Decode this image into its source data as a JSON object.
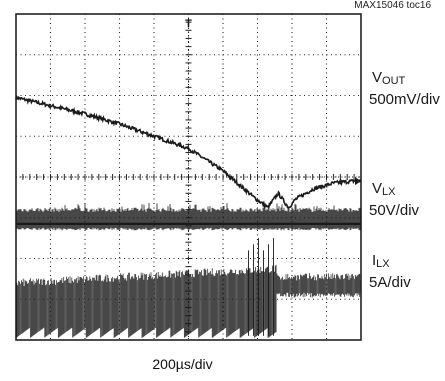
{
  "figure_id": "MAX15046 toc16",
  "channels": [
    {
      "symbol": "V",
      "subscript": "OUT",
      "scale": "500mV/div"
    },
    {
      "symbol": "V",
      "subscript": "LX",
      "scale": "50V/div"
    },
    {
      "symbol": "I",
      "subscript": "LX",
      "scale": "5A/div"
    }
  ],
  "timebase": "200µs/div",
  "colors": {
    "trace": "#1a1a1a",
    "grid": "#222222",
    "background": "#ffffff"
  },
  "chart_data": {
    "type": "line",
    "title": "",
    "x_divisions": 10,
    "y_divisions": 8,
    "grid": true,
    "trigger_marker": "T",
    "series": [
      {
        "name": "VOUT",
        "units": "div",
        "x_div": [
          0,
          0.5,
          1,
          2,
          3,
          4,
          5,
          6,
          6.9,
          7.3,
          7.6,
          7.9,
          8.1,
          8.6,
          9.2,
          10
        ],
        "y_div": [
          5.95,
          5.85,
          5.75,
          5.55,
          5.3,
          5.0,
          4.7,
          4.15,
          3.5,
          3.25,
          3.6,
          3.25,
          3.45,
          3.7,
          3.85,
          3.92
        ]
      },
      {
        "name": "VLX",
        "units": "div",
        "style": "switching burst, constant amplitude",
        "base_div": 2.9,
        "amplitude_div": 0.35
      },
      {
        "name": "ILX",
        "units": "div",
        "style": "pulsed before load step, dense ripple after",
        "pulse_low_div": 0.05,
        "pulse_high_div": 1.4,
        "step_at_div": 7.55,
        "after_low_div": 1.1,
        "after_high_div": 1.55
      }
    ]
  }
}
